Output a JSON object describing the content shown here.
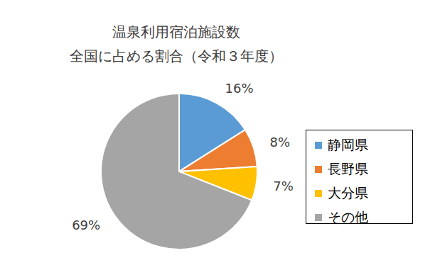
{
  "chart_data": {
    "type": "pie",
    "title": "温泉利用宿泊施設数",
    "subtitle": "全国に占める割合（令和３年度）",
    "categories": [
      "静岡県",
      "長野県",
      "大分県",
      "その他"
    ],
    "values": [
      16,
      8,
      7,
      69
    ],
    "value_labels": [
      "16%",
      "8%",
      "7%",
      "69%"
    ],
    "colors": [
      "#5b9bd5",
      "#ed7d31",
      "#ffc000",
      "#a5a5a5"
    ],
    "data_labels": true,
    "legend": "right"
  }
}
